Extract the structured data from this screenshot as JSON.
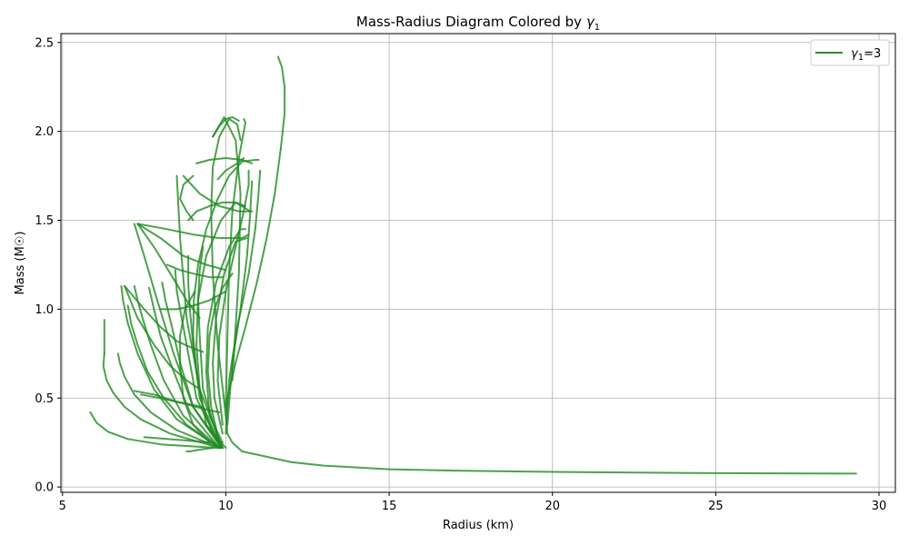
{
  "chart_data": {
    "type": "line",
    "title": "Mass-Radius Diagram Colored by γ₁",
    "title_prefix": "Mass-Radius Diagram Colored by ",
    "title_symbol": "γ",
    "title_subscript": "1",
    "xlabel": "Radius (km)",
    "ylabel": "Mass (M☉)",
    "xlim": [
      4.95,
      30.5
    ],
    "ylim": [
      -0.03,
      2.55
    ],
    "xticks": [
      5,
      10,
      15,
      20,
      25,
      30
    ],
    "yticks": [
      0.0,
      0.5,
      1.0,
      1.5,
      2.0,
      2.5
    ],
    "xtick_labels": [
      "5",
      "10",
      "15",
      "20",
      "25",
      "30"
    ],
    "ytick_labels": [
      "0.0",
      "0.5",
      "1.0",
      "1.5",
      "2.0",
      "2.5"
    ],
    "grid": true,
    "legend_position": "top-right",
    "legend": {
      "symbol": "γ",
      "subscript": "1",
      "suffix": "=3",
      "color": "#2e8b2e"
    },
    "line_color": "#1f8a1f",
    "series": [
      {
        "x": [
          29.3,
          25,
          20,
          17,
          15,
          13,
          12,
          11,
          10.5,
          10.2,
          10.05,
          10.0,
          10.05,
          10.3,
          10.6,
          10.95,
          11.25,
          11.5,
          11.68
        ],
        "y": [
          0.075,
          0.078,
          0.085,
          0.092,
          0.1,
          0.12,
          0.14,
          0.18,
          0.2,
          0.25,
          0.3,
          0.4,
          0.5,
          0.7,
          0.9,
          1.15,
          1.4,
          1.65,
          1.9
        ]
      },
      {
        "x": [
          11.68,
          11.8,
          11.8,
          11.72,
          11.6
        ],
        "y": [
          1.9,
          2.1,
          2.25,
          2.36,
          2.42
        ]
      },
      {
        "x": [
          10.0,
          9.6,
          9.3,
          9.1,
          9.0,
          9.02,
          9.15,
          9.4,
          9.75,
          10.1,
          10.5,
          10.9,
          11.0
        ],
        "y": [
          0.22,
          0.3,
          0.45,
          0.65,
          0.85,
          1.05,
          1.25,
          1.45,
          1.62,
          1.75,
          1.83,
          1.84,
          1.84
        ]
      },
      {
        "x": [
          10.0,
          9.75,
          9.6,
          9.55,
          9.6,
          9.8,
          10.1,
          10.35,
          10.45
        ],
        "y": [
          0.4,
          0.8,
          1.2,
          1.55,
          1.8,
          1.97,
          2.07,
          2.04,
          1.95
        ]
      },
      {
        "x": [
          10.0,
          10.05,
          10.1,
          10.2,
          10.4,
          10.55,
          10.6,
          10.55
        ],
        "y": [
          0.45,
          0.85,
          1.2,
          1.55,
          1.85,
          2.0,
          2.05,
          2.07
        ]
      },
      {
        "x": [
          10.2,
          10.4,
          10.45,
          10.3,
          9.95,
          9.6
        ],
        "y": [
          0.6,
          1.2,
          1.65,
          1.95,
          2.08,
          1.97
        ]
      },
      {
        "x": [
          9.9,
          9.0,
          8.4,
          7.9,
          7.5,
          7.2
        ],
        "y": [
          0.22,
          0.45,
          0.75,
          1.05,
          1.3,
          1.48
        ]
      },
      {
        "x": [
          9.9,
          9.2,
          8.8,
          8.6,
          8.5
        ],
        "y": [
          0.22,
          0.55,
          0.95,
          1.4,
          1.75
        ]
      },
      {
        "x": [
          9.9,
          9.4,
          9.2,
          9.1,
          9.15,
          9.4,
          9.85,
          10.3,
          10.75
        ],
        "y": [
          0.22,
          0.35,
          0.55,
          0.8,
          1.05,
          1.3,
          1.5,
          1.6,
          1.55
        ]
      },
      {
        "x": [
          9.9,
          9.5,
          9.4,
          9.45,
          9.7,
          10.1,
          10.45,
          10.6
        ],
        "y": [
          0.25,
          0.4,
          0.65,
          0.9,
          1.15,
          1.35,
          1.45,
          1.45
        ]
      },
      {
        "x": [
          9.9,
          9.65,
          9.6,
          9.7,
          9.95,
          10.3,
          10.65
        ],
        "y": [
          0.3,
          0.5,
          0.7,
          0.95,
          1.2,
          1.38,
          1.4
        ]
      },
      {
        "x": [
          9.9,
          9.75,
          9.8,
          10.0,
          10.3,
          10.55,
          10.7,
          10.7
        ],
        "y": [
          0.35,
          0.6,
          0.85,
          1.1,
          1.35,
          1.55,
          1.7,
          1.78
        ]
      },
      {
        "x": [
          10.0,
          10.1,
          10.35,
          10.7,
          10.9,
          11.0,
          11.05
        ],
        "y": [
          0.3,
          0.6,
          0.9,
          1.2,
          1.45,
          1.65,
          1.78
        ]
      },
      {
        "x": [
          10.05,
          10.2,
          10.45,
          10.65,
          10.75,
          10.8
        ],
        "y": [
          0.35,
          0.7,
          1.0,
          1.3,
          1.55,
          1.72
        ]
      },
      {
        "x": [
          9.8,
          8.5,
          7.8,
          7.3,
          7.0,
          6.85,
          6.8
        ],
        "y": [
          0.22,
          0.38,
          0.55,
          0.75,
          0.92,
          1.05,
          1.13
        ]
      },
      {
        "x": [
          9.8,
          8.7,
          8.1,
          7.7,
          7.45,
          7.3,
          7.2
        ],
        "y": [
          0.22,
          0.4,
          0.6,
          0.8,
          0.95,
          1.05,
          1.13
        ]
      },
      {
        "x": [
          9.8,
          8.9,
          8.4,
          8.0,
          7.8,
          7.65
        ],
        "y": [
          0.22,
          0.42,
          0.65,
          0.85,
          1.0,
          1.12
        ]
      },
      {
        "x": [
          9.85,
          9.0,
          8.6,
          8.35,
          8.15,
          8.05
        ],
        "y": [
          0.22,
          0.45,
          0.7,
          0.9,
          1.05,
          1.15
        ]
      },
      {
        "x": [
          9.85,
          9.1,
          8.85,
          8.65,
          8.5,
          8.45
        ],
        "y": [
          0.22,
          0.5,
          0.75,
          0.95,
          1.1,
          1.22
        ]
      },
      {
        "x": [
          9.85,
          9.2,
          9.0,
          8.9,
          8.85,
          8.85
        ],
        "y": [
          0.22,
          0.5,
          0.8,
          1.0,
          1.15,
          1.3
        ]
      },
      {
        "x": [
          9.85,
          9.3,
          9.2,
          9.15,
          9.2,
          9.3
        ],
        "y": [
          0.22,
          0.55,
          0.85,
          1.05,
          1.22,
          1.35
        ]
      },
      {
        "x": [
          9.8,
          8.3,
          7.4,
          6.9,
          6.55,
          6.35,
          6.25,
          6.28
        ],
        "y": [
          0.22,
          0.3,
          0.38,
          0.45,
          0.53,
          0.6,
          0.68,
          0.75
        ]
      },
      {
        "x": [
          9.8,
          8.5,
          7.7,
          7.2,
          6.9,
          6.75,
          6.7
        ],
        "y": [
          0.22,
          0.32,
          0.42,
          0.52,
          0.62,
          0.7,
          0.75
        ]
      },
      {
        "x": [
          9.8,
          8.8,
          8.1,
          7.6,
          7.3,
          7.1,
          7.0
        ],
        "y": [
          0.22,
          0.35,
          0.5,
          0.65,
          0.8,
          0.92,
          1.02
        ]
      },
      {
        "x": [
          9.75,
          8.0,
          7.0,
          6.4,
          6.05,
          5.85
        ],
        "y": [
          0.22,
          0.24,
          0.27,
          0.31,
          0.36,
          0.42
        ]
      },
      {
        "x": [
          6.28,
          6.28
        ],
        "y": [
          0.75,
          0.94
        ]
      },
      {
        "x": [
          9.6,
          9.2,
          8.9,
          8.8
        ],
        "y": [
          0.22,
          0.21,
          0.2,
          0.2
        ]
      },
      {
        "x": [
          9.3,
          8.5,
          7.8,
          7.2
        ],
        "y": [
          0.45,
          0.48,
          0.52,
          0.54
        ]
      },
      {
        "x": [
          9.5,
          9.0,
          8.7,
          8.6,
          8.6,
          8.75,
          9.05
        ],
        "y": [
          0.25,
          0.35,
          0.5,
          0.68,
          0.85,
          1.0,
          1.1
        ]
      },
      {
        "x": [
          9.8,
          9.55,
          9.45,
          9.5,
          9.65,
          9.9,
          10.2
        ],
        "y": [
          0.25,
          0.45,
          0.65,
          0.85,
          1.0,
          1.12,
          1.2
        ]
      },
      {
        "x": [
          9.0,
          8.8,
          8.6,
          8.7,
          9.0
        ],
        "y": [
          1.5,
          1.55,
          1.62,
          1.7,
          1.75
        ]
      },
      {
        "x": [
          7.3,
          8.2,
          9.0,
          9.8,
          10.5,
          10.7
        ],
        "y": [
          1.48,
          1.45,
          1.42,
          1.4,
          1.4,
          1.42
        ]
      },
      {
        "x": [
          7.3,
          8.0,
          8.7,
          9.4,
          10.0
        ],
        "y": [
          1.48,
          1.4,
          1.3,
          1.25,
          1.22
        ]
      },
      {
        "x": [
          7.3,
          7.8,
          8.3,
          8.8,
          9.2
        ],
        "y": [
          1.48,
          1.35,
          1.2,
          1.05,
          0.95
        ]
      },
      {
        "x": [
          9.1,
          9.5,
          10.0,
          10.5,
          10.8
        ],
        "y": [
          1.82,
          1.84,
          1.85,
          1.84,
          1.82
        ]
      },
      {
        "x": [
          9.75,
          10.0,
          10.35,
          10.55
        ],
        "y": [
          1.73,
          1.78,
          1.82,
          1.85
        ]
      },
      {
        "x": [
          9.6,
          9.8,
          10.0,
          10.2,
          10.4
        ],
        "y": [
          1.97,
          2.03,
          2.07,
          2.08,
          2.06
        ]
      },
      {
        "x": [
          8.85,
          9.1,
          9.5,
          9.9,
          10.3,
          10.6
        ],
        "y": [
          1.5,
          1.55,
          1.58,
          1.6,
          1.6,
          1.58
        ]
      },
      {
        "x": [
          8.7,
          9.2,
          9.8,
          10.4,
          10.8
        ],
        "y": [
          1.75,
          1.65,
          1.58,
          1.55,
          1.55
        ]
      },
      {
        "x": [
          6.9,
          7.5,
          8.0,
          8.5,
          9.0,
          9.3
        ],
        "y": [
          1.13,
          1.0,
          0.9,
          0.82,
          0.78,
          0.76
        ]
      },
      {
        "x": [
          6.9,
          7.3,
          7.8,
          8.3,
          8.8,
          9.2
        ],
        "y": [
          1.13,
          0.95,
          0.8,
          0.68,
          0.6,
          0.55
        ]
      },
      {
        "x": [
          7.4,
          8.0,
          8.7,
          9.3,
          9.8
        ],
        "y": [
          0.52,
          0.5,
          0.47,
          0.44,
          0.42
        ]
      },
      {
        "x": [
          7.5,
          8.2,
          8.9,
          9.5
        ],
        "y": [
          0.28,
          0.27,
          0.26,
          0.25
        ]
      },
      {
        "x": [
          8.2,
          8.6,
          9.0,
          9.5,
          9.9
        ],
        "y": [
          1.25,
          1.22,
          1.2,
          1.18,
          1.18
        ]
      },
      {
        "x": [
          8.0,
          8.5,
          9.0,
          9.5,
          10.0
        ],
        "y": [
          1.0,
          1.0,
          1.02,
          1.05,
          1.1
        ]
      }
    ]
  }
}
